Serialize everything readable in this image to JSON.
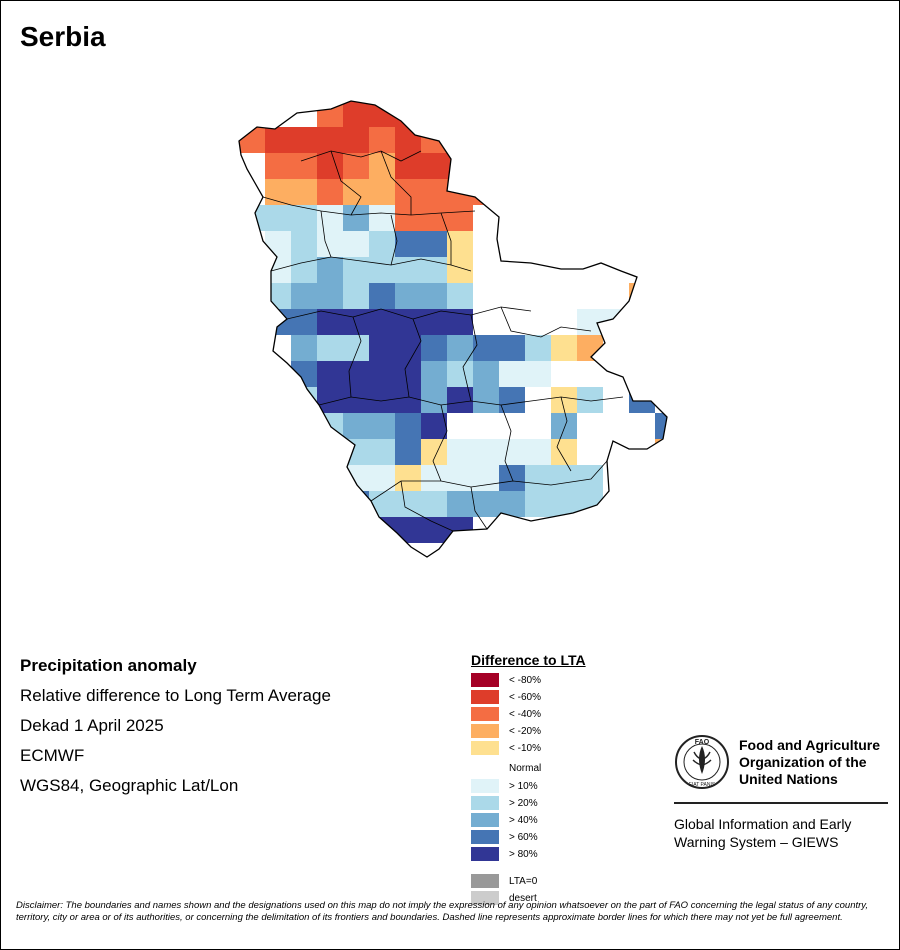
{
  "map": {
    "title": "Serbia",
    "colors": {
      "lt80": "#a50026",
      "lt60": "#de3d2a",
      "lt40": "#f46d43",
      "lt20": "#fdae61",
      "lt10": "#fee090",
      "normal": "#ffffff",
      "gt10": "#e0f3f8",
      "gt20": "#abd9e9",
      "gt40": "#74add1",
      "gt60": "#4575b4",
      "gt80": "#313695",
      "lta0": "#999999",
      "desert": "#cccccc"
    }
  },
  "info": {
    "heading": "Precipitation anomaly",
    "line1": "Relative difference to Long Term Average",
    "line2": "Dekad 1 April 2025",
    "line3": "ECMWF",
    "line4": "WGS84, Geographic Lat/Lon"
  },
  "legend": {
    "title": "Difference to LTA",
    "items": [
      {
        "label": "< -80%",
        "color": "#a50026"
      },
      {
        "label": "< -60%",
        "color": "#de3d2a"
      },
      {
        "label": "< -40%",
        "color": "#f46d43"
      },
      {
        "label": "< -20%",
        "color": "#fdae61"
      },
      {
        "label": "< -10%",
        "color": "#fee090"
      },
      {
        "label": "Normal",
        "color": "#ffffff"
      },
      {
        "label": "> 10%",
        "color": "#e0f3f8"
      },
      {
        "label": "> 20%",
        "color": "#abd9e9"
      },
      {
        "label": "> 40%",
        "color": "#74add1"
      },
      {
        "label": "> 60%",
        "color": "#4575b4"
      },
      {
        "label": "> 80%",
        "color": "#313695"
      },
      {
        "label": "LTA=0",
        "color": "#999999"
      },
      {
        "label": "desert",
        "color": "#cccccc"
      }
    ]
  },
  "logo": {
    "org_name": "Food and Agriculture Organization of the United Nations",
    "logo_text": "FAO",
    "logo_motto": "FIAT PANIS",
    "system_name": "Global Information and Early Warning System – GIEWS"
  },
  "disclaimer": "Disclaimer: The boundaries and names shown and the designations used on this map do not imply the expression of any opinion whatsoever on the part of FAO concerning the legal status of any country, territory, city or area or of its authorities, or concerning the delimitation of its frontiers and boundaries. Dashed line represents approximate border lines for which there may not yet be full agreement."
}
